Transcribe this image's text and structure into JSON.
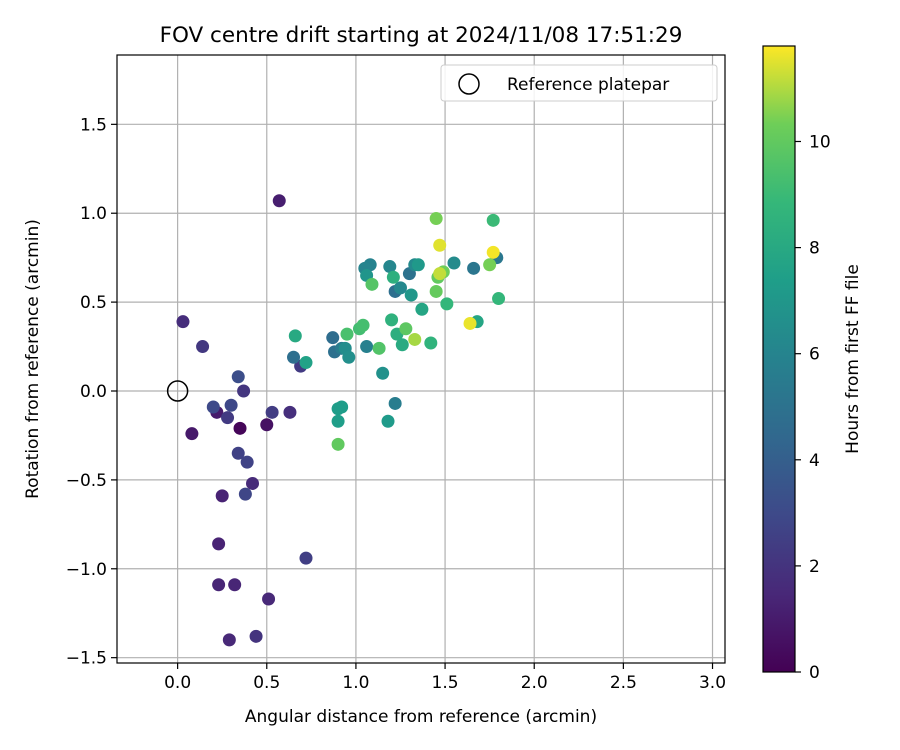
{
  "chart_data": {
    "type": "scatter",
    "title": "FOV centre drift starting at 2024/11/08 17:51:29",
    "xlabel": "Angular distance from reference (arcmin)",
    "ylabel": "Rotation from reference (arcmin)",
    "xlim": [
      -0.34,
      3.07
    ],
    "ylim": [
      -1.53,
      1.89
    ],
    "xticks": [
      0.0,
      0.5,
      1.0,
      1.5,
      2.0,
      2.5,
      3.0
    ],
    "xtick_labels": [
      "0.0",
      "0.5",
      "1.0",
      "1.5",
      "2.0",
      "2.5",
      "3.0"
    ],
    "yticks": [
      -1.5,
      -1.0,
      -0.5,
      0.0,
      0.5,
      1.0,
      1.5
    ],
    "ytick_labels": [
      "−1.5",
      "−1.0",
      "−0.5",
      "0.0",
      "0.5",
      "1.0",
      "1.5"
    ],
    "grid": true,
    "legend": {
      "placement": "top-right",
      "label": "Reference platepar"
    },
    "reference_point": {
      "x": 0.0,
      "y": 0.0
    },
    "colorbar": {
      "label": "Hours from first FF file",
      "colormap": "viridis",
      "range": [
        0,
        11.8
      ],
      "ticks": [
        0,
        2,
        4,
        6,
        8,
        10
      ],
      "tick_labels": [
        "0",
        "2",
        "4",
        "6",
        "8",
        "10"
      ]
    },
    "points": [
      {
        "x": 0.35,
        "y": -0.21,
        "h": 0.2
      },
      {
        "x": 0.5,
        "y": -0.19,
        "h": 0.6
      },
      {
        "x": 0.08,
        "y": -0.24,
        "h": 0.9
      },
      {
        "x": 0.22,
        "y": -0.12,
        "h": 1.0
      },
      {
        "x": 0.57,
        "y": 1.07,
        "h": 1.1
      },
      {
        "x": 0.25,
        "y": -0.59,
        "h": 1.3
      },
      {
        "x": 0.23,
        "y": -0.86,
        "h": 1.3
      },
      {
        "x": 0.23,
        "y": -1.09,
        "h": 1.4
      },
      {
        "x": 0.32,
        "y": -1.09,
        "h": 1.4
      },
      {
        "x": 0.29,
        "y": -1.4,
        "h": 1.5
      },
      {
        "x": 0.51,
        "y": -1.17,
        "h": 1.5
      },
      {
        "x": 0.42,
        "y": -0.52,
        "h": 1.6
      },
      {
        "x": 0.03,
        "y": 0.39,
        "h": 1.7
      },
      {
        "x": 0.63,
        "y": -0.12,
        "h": 1.8
      },
      {
        "x": 0.44,
        "y": -1.38,
        "h": 2.0
      },
      {
        "x": 0.37,
        "y": 0.0,
        "h": 2.1
      },
      {
        "x": 0.14,
        "y": 0.25,
        "h": 2.2
      },
      {
        "x": 0.28,
        "y": -0.15,
        "h": 2.3
      },
      {
        "x": 0.69,
        "y": 0.14,
        "h": 2.3
      },
      {
        "x": 0.53,
        "y": -0.12,
        "h": 2.4
      },
      {
        "x": 0.72,
        "y": -0.94,
        "h": 2.5
      },
      {
        "x": 0.34,
        "y": -0.35,
        "h": 2.6
      },
      {
        "x": 0.39,
        "y": -0.4,
        "h": 2.7
      },
      {
        "x": 0.38,
        "y": -0.58,
        "h": 2.8
      },
      {
        "x": 0.3,
        "y": -0.08,
        "h": 2.9
      },
      {
        "x": 0.2,
        "y": -0.09,
        "h": 3.0
      },
      {
        "x": 0.34,
        "y": 0.08,
        "h": 3.2
      },
      {
        "x": 0.65,
        "y": 0.19,
        "h": 4.8
      },
      {
        "x": 0.87,
        "y": 0.3,
        "h": 4.7
      },
      {
        "x": 0.88,
        "y": 0.22,
        "h": 4.9
      },
      {
        "x": 1.22,
        "y": 0.56,
        "h": 4.8
      },
      {
        "x": 1.3,
        "y": 0.66,
        "h": 5.0
      },
      {
        "x": 1.66,
        "y": 0.69,
        "h": 5.2
      },
      {
        "x": 1.79,
        "y": 0.75,
        "h": 5.3
      },
      {
        "x": 0.92,
        "y": 0.24,
        "h": 5.5
      },
      {
        "x": 1.22,
        "y": -0.07,
        "h": 5.6
      },
      {
        "x": 1.06,
        "y": 0.25,
        "h": 5.8
      },
      {
        "x": 1.08,
        "y": 0.71,
        "h": 5.9
      },
      {
        "x": 1.05,
        "y": 0.69,
        "h": 6.0
      },
      {
        "x": 1.19,
        "y": 0.7,
        "h": 6.1
      },
      {
        "x": 1.25,
        "y": 0.58,
        "h": 6.2
      },
      {
        "x": 1.33,
        "y": 0.71,
        "h": 6.3
      },
      {
        "x": 1.55,
        "y": 0.72,
        "h": 6.4
      },
      {
        "x": 0.94,
        "y": 0.24,
        "h": 6.5
      },
      {
        "x": 0.96,
        "y": 0.19,
        "h": 6.6
      },
      {
        "x": 1.15,
        "y": 0.1,
        "h": 6.7
      },
      {
        "x": 1.06,
        "y": 0.65,
        "h": 6.9
      },
      {
        "x": 1.31,
        "y": 0.54,
        "h": 7.0
      },
      {
        "x": 1.35,
        "y": 0.71,
        "h": 7.1
      },
      {
        "x": 1.18,
        "y": -0.17,
        "h": 7.2
      },
      {
        "x": 0.92,
        "y": -0.09,
        "h": 7.3
      },
      {
        "x": 0.9,
        "y": -0.1,
        "h": 7.3
      },
      {
        "x": 0.9,
        "y": -0.17,
        "h": 7.4
      },
      {
        "x": 0.72,
        "y": 0.16,
        "h": 7.6
      },
      {
        "x": 1.37,
        "y": 0.46,
        "h": 7.8
      },
      {
        "x": 1.68,
        "y": 0.39,
        "h": 7.8
      },
      {
        "x": 0.66,
        "y": 0.31,
        "h": 8.0
      },
      {
        "x": 1.26,
        "y": 0.26,
        "h": 8.1
      },
      {
        "x": 1.23,
        "y": 0.32,
        "h": 8.3
      },
      {
        "x": 1.21,
        "y": 0.64,
        "h": 8.4
      },
      {
        "x": 1.2,
        "y": 0.4,
        "h": 8.5
      },
      {
        "x": 1.42,
        "y": 0.27,
        "h": 8.6
      },
      {
        "x": 1.51,
        "y": 0.49,
        "h": 8.8
      },
      {
        "x": 1.8,
        "y": 0.52,
        "h": 8.8
      },
      {
        "x": 1.77,
        "y": 0.96,
        "h": 9.0
      },
      {
        "x": 1.02,
        "y": 0.35,
        "h": 9.2
      },
      {
        "x": 1.04,
        "y": 0.37,
        "h": 9.3
      },
      {
        "x": 0.95,
        "y": 0.32,
        "h": 9.4
      },
      {
        "x": 1.13,
        "y": 0.24,
        "h": 9.6
      },
      {
        "x": 1.09,
        "y": 0.6,
        "h": 9.7
      },
      {
        "x": 1.28,
        "y": 0.35,
        "h": 9.9
      },
      {
        "x": 1.46,
        "y": 0.64,
        "h": 10.0
      },
      {
        "x": 1.45,
        "y": 0.56,
        "h": 10.1
      },
      {
        "x": 1.49,
        "y": 0.67,
        "h": 10.3
      },
      {
        "x": 1.45,
        "y": 0.97,
        "h": 10.4
      },
      {
        "x": 1.75,
        "y": 0.71,
        "h": 10.4
      },
      {
        "x": 0.9,
        "y": -0.3,
        "h": 10.0
      },
      {
        "x": 1.33,
        "y": 0.29,
        "h": 10.9
      },
      {
        "x": 1.47,
        "y": 0.66,
        "h": 11.2
      },
      {
        "x": 1.47,
        "y": 0.82,
        "h": 11.5
      },
      {
        "x": 1.64,
        "y": 0.38,
        "h": 11.6
      },
      {
        "x": 1.77,
        "y": 0.78,
        "h": 11.7
      }
    ]
  }
}
